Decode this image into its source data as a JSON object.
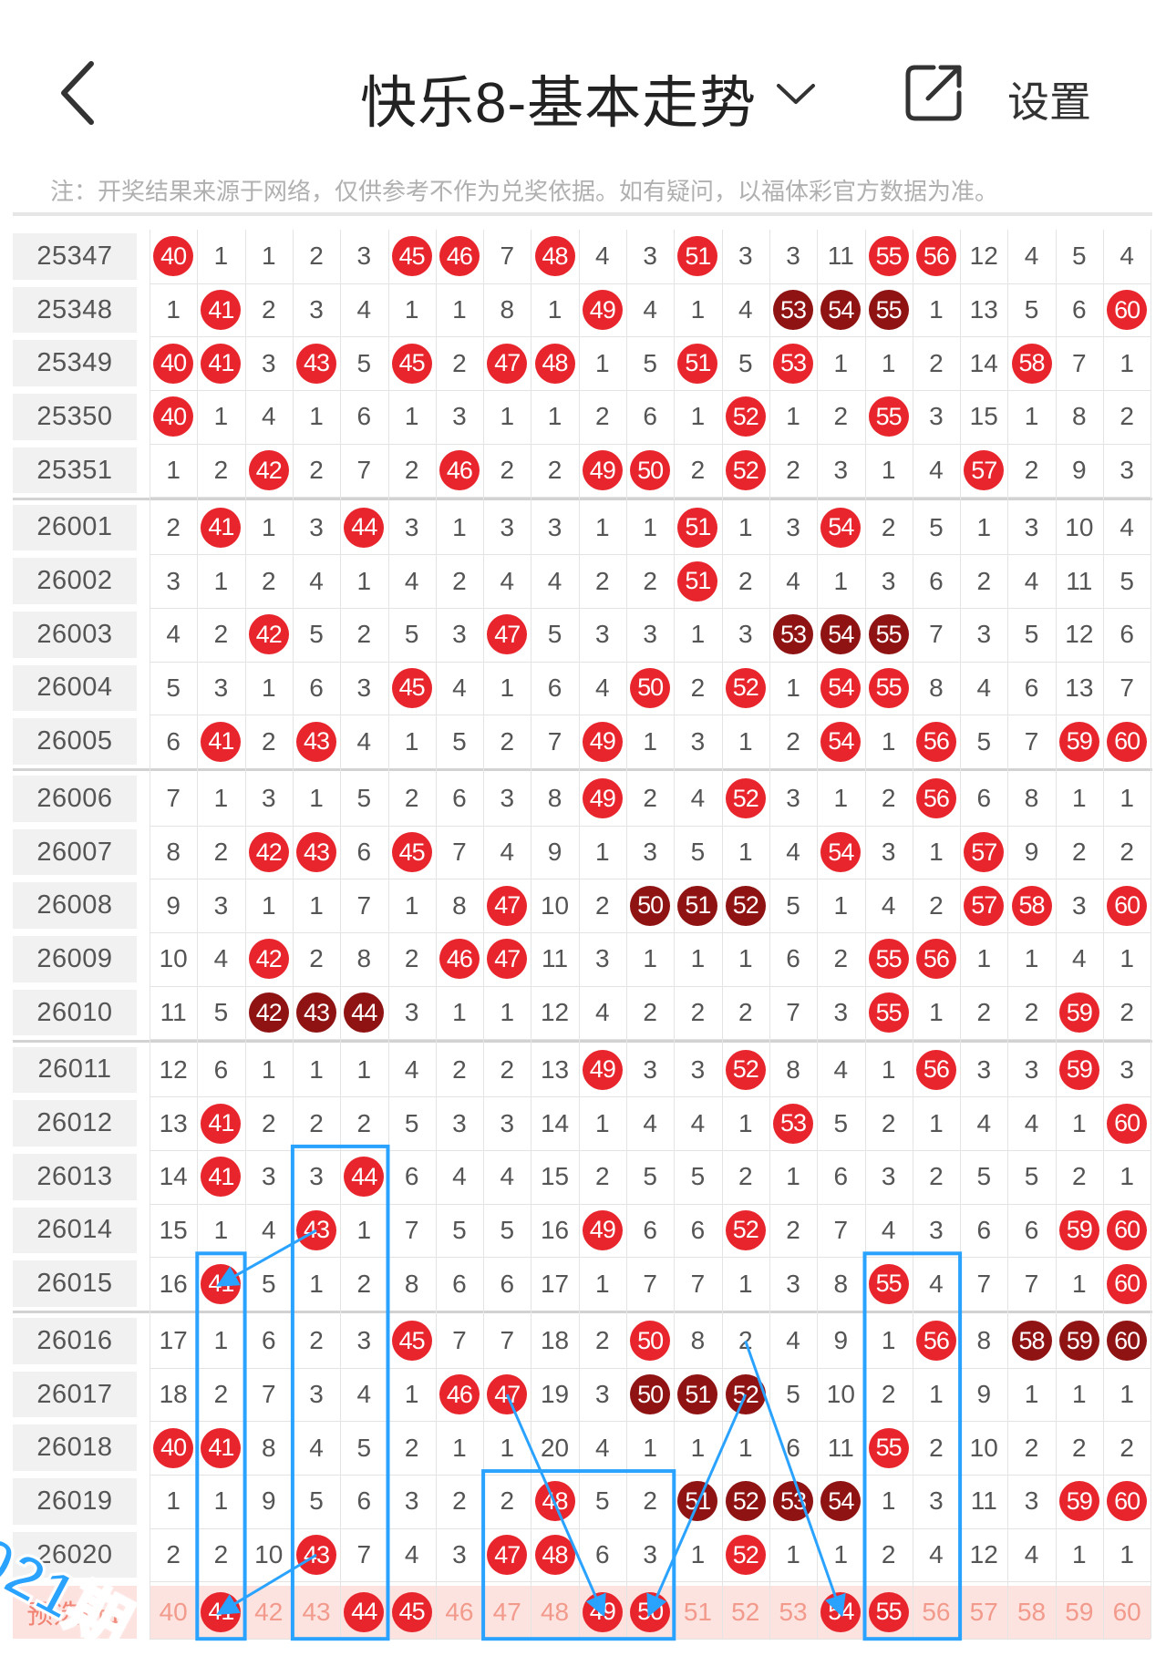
{
  "header": {
    "title": "快乐8-基本走势",
    "settings_label": "设置"
  },
  "notice": "注：开奖结果来源于网络，仅供参考不作为兑奖依据。如有疑问，以福体彩官方数据为准。",
  "columns": [
    40,
    41,
    42,
    43,
    44,
    45,
    46,
    47,
    48,
    49,
    50,
    51,
    52,
    53,
    54,
    55,
    56,
    57,
    58,
    59,
    60
  ],
  "colors": {
    "hit": "#e8252c",
    "streak": "#8f1313",
    "annotation": "#2aa2ff",
    "preselect_bg": "#fde3e0"
  },
  "rows": [
    {
      "issue": "25347",
      "cells": [
        "40R",
        "1",
        "1",
        "2",
        "3",
        "45R",
        "46R",
        "7",
        "48R",
        "4",
        "3",
        "51R",
        "3",
        "3",
        "11",
        "55R",
        "56R",
        "12",
        "4",
        "5",
        "4"
      ]
    },
    {
      "issue": "25348",
      "cells": [
        "1",
        "41R",
        "2",
        "3",
        "4",
        "1",
        "1",
        "8",
        "1",
        "49R",
        "4",
        "1",
        "4",
        "53D",
        "54D",
        "55D",
        "1",
        "13",
        "5",
        "6",
        "60R"
      ]
    },
    {
      "issue": "25349",
      "cells": [
        "40R",
        "41R",
        "3",
        "43R",
        "5",
        "45R",
        "2",
        "47R",
        "48R",
        "1",
        "5",
        "51R",
        "5",
        "53R",
        "1",
        "1",
        "2",
        "14",
        "58R",
        "7",
        "1"
      ]
    },
    {
      "issue": "25350",
      "cells": [
        "40R",
        "1",
        "4",
        "1",
        "6",
        "1",
        "3",
        "1",
        "1",
        "2",
        "6",
        "1",
        "52R",
        "1",
        "2",
        "55R",
        "3",
        "15",
        "1",
        "8",
        "2"
      ]
    },
    {
      "issue": "25351",
      "cells": [
        "1",
        "2",
        "42R",
        "2",
        "7",
        "2",
        "46R",
        "2",
        "2",
        "49R",
        "50R",
        "2",
        "52R",
        "2",
        "3",
        "1",
        "4",
        "57R",
        "2",
        "9",
        "3"
      ]
    },
    {
      "issue": "26001",
      "cells": [
        "2",
        "41R",
        "1",
        "3",
        "44R",
        "3",
        "1",
        "3",
        "3",
        "1",
        "1",
        "51R",
        "1",
        "3",
        "54R",
        "2",
        "5",
        "1",
        "3",
        "10",
        "4"
      ]
    },
    {
      "issue": "26002",
      "cells": [
        "3",
        "1",
        "2",
        "4",
        "1",
        "4",
        "2",
        "4",
        "4",
        "2",
        "2",
        "51R",
        "2",
        "4",
        "1",
        "3",
        "6",
        "2",
        "4",
        "11",
        "5"
      ]
    },
    {
      "issue": "26003",
      "cells": [
        "4",
        "2",
        "42R",
        "5",
        "2",
        "5",
        "3",
        "47R",
        "5",
        "3",
        "3",
        "1",
        "3",
        "53D",
        "54D",
        "55D",
        "7",
        "3",
        "5",
        "12",
        "6"
      ]
    },
    {
      "issue": "26004",
      "cells": [
        "5",
        "3",
        "1",
        "6",
        "3",
        "45R",
        "4",
        "1",
        "6",
        "4",
        "50R",
        "2",
        "52R",
        "1",
        "54R",
        "55R",
        "8",
        "4",
        "6",
        "13",
        "7"
      ]
    },
    {
      "issue": "26005",
      "cells": [
        "6",
        "41R",
        "2",
        "43R",
        "4",
        "1",
        "5",
        "2",
        "7",
        "49R",
        "1",
        "3",
        "1",
        "2",
        "54R",
        "1",
        "56R",
        "5",
        "7",
        "59R",
        "60R"
      ]
    },
    {
      "issue": "26006",
      "cells": [
        "7",
        "1",
        "3",
        "1",
        "5",
        "2",
        "6",
        "3",
        "8",
        "49R",
        "2",
        "4",
        "52R",
        "3",
        "1",
        "2",
        "56R",
        "6",
        "8",
        "1",
        "1"
      ]
    },
    {
      "issue": "26007",
      "cells": [
        "8",
        "2",
        "42R",
        "43R",
        "6",
        "45R",
        "7",
        "4",
        "9",
        "1",
        "3",
        "5",
        "1",
        "4",
        "54R",
        "3",
        "1",
        "57R",
        "9",
        "2",
        "2"
      ]
    },
    {
      "issue": "26008",
      "cells": [
        "9",
        "3",
        "1",
        "1",
        "7",
        "1",
        "8",
        "47R",
        "10",
        "2",
        "50D",
        "51D",
        "52D",
        "5",
        "1",
        "4",
        "2",
        "57R",
        "58R",
        "3",
        "60R"
      ]
    },
    {
      "issue": "26009",
      "cells": [
        "10",
        "4",
        "42R",
        "2",
        "8",
        "2",
        "46R",
        "47R",
        "11",
        "3",
        "1",
        "1",
        "1",
        "6",
        "2",
        "55R",
        "56R",
        "1",
        "1",
        "4",
        "1"
      ]
    },
    {
      "issue": "26010",
      "cells": [
        "11",
        "5",
        "42D",
        "43D",
        "44D",
        "3",
        "1",
        "1",
        "12",
        "4",
        "2",
        "2",
        "2",
        "7",
        "3",
        "55R",
        "1",
        "2",
        "2",
        "59R",
        "2"
      ]
    },
    {
      "issue": "26011",
      "cells": [
        "12",
        "6",
        "1",
        "1",
        "1",
        "4",
        "2",
        "2",
        "13",
        "49R",
        "3",
        "3",
        "52R",
        "8",
        "4",
        "1",
        "56R",
        "3",
        "3",
        "59R",
        "3"
      ]
    },
    {
      "issue": "26012",
      "cells": [
        "13",
        "41R",
        "2",
        "2",
        "2",
        "5",
        "3",
        "3",
        "14",
        "1",
        "4",
        "4",
        "1",
        "53R",
        "5",
        "2",
        "1",
        "4",
        "4",
        "1",
        "60R"
      ]
    },
    {
      "issue": "26013",
      "cells": [
        "14",
        "41R",
        "3",
        "3",
        "44R",
        "6",
        "4",
        "4",
        "15",
        "2",
        "5",
        "5",
        "2",
        "1",
        "6",
        "3",
        "2",
        "5",
        "5",
        "2",
        "1"
      ]
    },
    {
      "issue": "26014",
      "cells": [
        "15",
        "1",
        "4",
        "43R",
        "1",
        "7",
        "5",
        "5",
        "16",
        "49R",
        "6",
        "6",
        "52R",
        "2",
        "7",
        "4",
        "3",
        "6",
        "6",
        "59R",
        "60R"
      ]
    },
    {
      "issue": "26015",
      "cells": [
        "16",
        "41R",
        "5",
        "1",
        "2",
        "8",
        "6",
        "6",
        "17",
        "1",
        "7",
        "7",
        "1",
        "3",
        "8",
        "55R",
        "4",
        "7",
        "7",
        "1",
        "60R"
      ]
    },
    {
      "issue": "26016",
      "cells": [
        "17",
        "1",
        "6",
        "2",
        "3",
        "45R",
        "7",
        "7",
        "18",
        "2",
        "50R",
        "8",
        "2",
        "4",
        "9",
        "1",
        "56R",
        "8",
        "58D",
        "59D",
        "60D"
      ]
    },
    {
      "issue": "26017",
      "cells": [
        "18",
        "2",
        "7",
        "3",
        "4",
        "1",
        "46R",
        "47R",
        "19",
        "3",
        "50D",
        "51D",
        "52D",
        "5",
        "10",
        "2",
        "1",
        "9",
        "1",
        "1",
        "1"
      ]
    },
    {
      "issue": "26018",
      "cells": [
        "40R",
        "41R",
        "8",
        "4",
        "5",
        "2",
        "1",
        "1",
        "20",
        "4",
        "1",
        "1",
        "1",
        "6",
        "11",
        "55R",
        "2",
        "10",
        "2",
        "2",
        "2"
      ]
    },
    {
      "issue": "26019",
      "cells": [
        "1",
        "1",
        "9",
        "5",
        "6",
        "3",
        "2",
        "2",
        "48R",
        "5",
        "2",
        "51D",
        "52D",
        "53D",
        "54D",
        "1",
        "3",
        "11",
        "3",
        "59R",
        "60R"
      ]
    },
    {
      "issue": "26020",
      "cells": [
        "2",
        "2",
        "10",
        "43R",
        "7",
        "4",
        "3",
        "47R",
        "48R",
        "6",
        "3",
        "1",
        "52R",
        "1",
        "1",
        "2",
        "4",
        "12",
        "4",
        "1",
        "1"
      ]
    }
  ],
  "preselect": {
    "label": "预选行1",
    "cells": [
      "40",
      "41R",
      "42",
      "43",
      "44R",
      "45R",
      "46",
      "47",
      "48",
      "49R",
      "50R",
      "51",
      "52",
      "53",
      "54R",
      "55R",
      "56",
      "57",
      "58",
      "59",
      "60"
    ]
  },
  "stamp_text": "021期"
}
